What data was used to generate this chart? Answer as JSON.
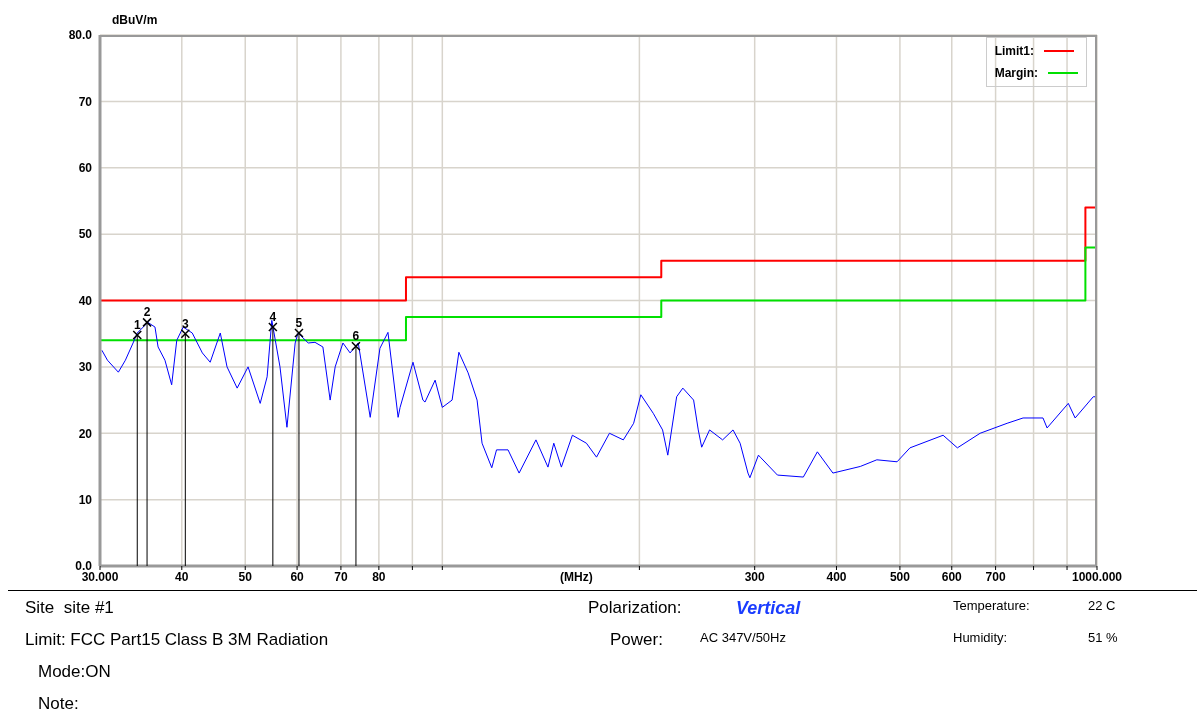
{
  "chart_data": {
    "type": "line",
    "ylabel": "dBuV/m",
    "xlabel": "(MHz)",
    "log": "x",
    "grid": true,
    "legend": "top right",
    "xlim": [
      30,
      1000
    ],
    "xticks": [
      {
        "value": 30,
        "label": "30.000"
      },
      40,
      50,
      60,
      70,
      80,
      {
        "value": 90,
        "label": null
      },
      {
        "value": 100,
        "label": null
      },
      {
        "value": 200,
        "label": null
      },
      300,
      400,
      500,
      600,
      700,
      {
        "value": 800,
        "label": null
      },
      {
        "value": 900,
        "label": null
      },
      {
        "value": 1000,
        "label": "1000.000"
      }
    ],
    "ylim": [
      0,
      80
    ],
    "yticks": [
      {
        "value": 0,
        "label": "0.0"
      },
      10,
      20,
      30,
      40,
      50,
      60,
      70,
      {
        "value": 80,
        "label": "80.0"
      }
    ],
    "series": [
      {
        "type": "step",
        "name": "Limit1:",
        "color": "#ff0000",
        "x": [
          30,
          88,
          216,
          960,
          1000
        ],
        "values": [
          40,
          43.5,
          46,
          54,
          54
        ]
      },
      {
        "type": "step",
        "name": "Margin:",
        "color": "#00e000",
        "x": [
          30,
          88,
          216,
          960,
          1000
        ],
        "values": [
          34,
          37.5,
          40,
          48,
          48
        ]
      },
      {
        "color": "#0000ff",
        "x": [
          30.2,
          30.8,
          32.0,
          32.8,
          33.7,
          34.2,
          35.5,
          36.4,
          36.8,
          37.7,
          38.6,
          39.3,
          40.2,
          41.5,
          43.0,
          44.2,
          45.8,
          46.9,
          48.6,
          50.5,
          52.7,
          54.0,
          54.9,
          56.5,
          57.9,
          59.6,
          60.2,
          62.4,
          63.9,
          65.7,
          67.4,
          68.6,
          70.5,
          72.3,
          74.4,
          77.6,
          80.3,
          82.6,
          85.6,
          86.2,
          90.2,
          93.4,
          94.1,
          97.5,
          100,
          103.5,
          106,
          109.5,
          113,
          115,
          119,
          121,
          126,
          131,
          139,
          145,
          148,
          152,
          158,
          166,
          172,
          180,
          189,
          196,
          201,
          210,
          217,
          221,
          228,
          233,
          242,
          246,
          249,
          256,
          268,
          278,
          285,
          293,
          295,
          304,
          306,
          325,
          356,
          374,
          395,
          435,
          461,
          495,
          518,
          582,
          612,
          663,
          729,
          771,
          827,
          839,
          904,
          926,
          987,
          1000
        ],
        "values": [
          32.5,
          31.0,
          29.2,
          31.0,
          33.6,
          35.1,
          36.7,
          36.0,
          33.0,
          31.0,
          27.3,
          34.0,
          36.0,
          35.1,
          32.1,
          30.7,
          35.1,
          30.0,
          26.8,
          30.0,
          24.5,
          28.5,
          37.0,
          30.0,
          20.9,
          33.6,
          35.1,
          33.6,
          33.7,
          33.0,
          25.0,
          30.0,
          33.6,
          32.1,
          33.6,
          22.4,
          32.8,
          35.2,
          22.4,
          23.9,
          30.7,
          25.0,
          24.7,
          28.0,
          23.9,
          25.0,
          32.2,
          29.1,
          25.0,
          18.5,
          14.8,
          17.5,
          17.5,
          14.0,
          19.0,
          14.9,
          18.5,
          14.9,
          19.7,
          18.5,
          16.4,
          20.0,
          19.0,
          21.5,
          25.8,
          23.0,
          20.5,
          16.7,
          25.5,
          26.8,
          25.0,
          20.5,
          17.9,
          20.5,
          19.0,
          20.5,
          18.5,
          14.0,
          13.3,
          16.7,
          16.4,
          13.7,
          13.4,
          17.2,
          14.0,
          15.0,
          16.0,
          15.7,
          17.8,
          19.7,
          17.8,
          20.0,
          21.5,
          22.3,
          22.3,
          20.8,
          24.5,
          22.3,
          25.5,
          25.5
        ]
      },
      {
        "type": "lollipop",
        "color": "#000000",
        "marker": "cross",
        "x": [
          34.2,
          35.4,
          40.5,
          55.1,
          60.4,
          73.8
        ],
        "values": [
          34.8,
          36.7,
          35.0,
          36.0,
          35.1,
          33.1
        ]
      }
    ],
    "annotations": [
      {
        "text": "1",
        "x": 34.2,
        "y": 34.8
      },
      {
        "text": "2",
        "x": 35.4,
        "y": 36.7
      },
      {
        "text": "3",
        "x": 40.5,
        "y": 35.0
      },
      {
        "text": "4",
        "x": 55.1,
        "y": 36.0
      },
      {
        "text": "5",
        "x": 60.4,
        "y": 35.1
      },
      {
        "text": "6",
        "x": 73.8,
        "y": 33.1
      },
      "Site  site #1",
      "Limit: FCC Part15 Class B 3M Radiation",
      "Mode:ON",
      "Note:",
      "Polarization:",
      "Vertical",
      "Power:",
      "AC 347V/50Hz",
      "Temperature:",
      "22 C",
      "Humidity:",
      "51 %"
    ]
  }
}
